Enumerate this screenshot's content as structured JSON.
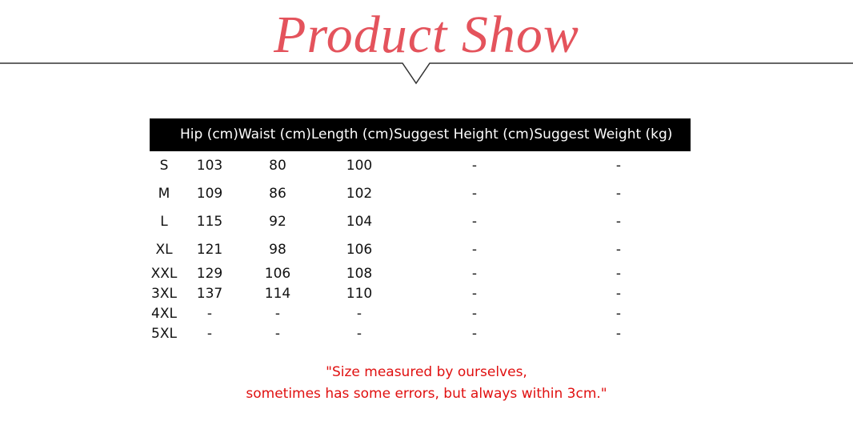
{
  "title": "Product Show",
  "accent_color": "#e4535c",
  "note_color": "#e01010",
  "table": {
    "headers": [
      "",
      "Hip (cm)",
      "Waist (cm)",
      "Length (cm)",
      "Suggest Height (cm)",
      "Suggest Weight (kg)"
    ],
    "rows": [
      [
        "S",
        "103",
        "80",
        "100",
        "-",
        "-"
      ],
      [
        "M",
        "109",
        "86",
        "102",
        "-",
        "-"
      ],
      [
        "L",
        "115",
        "92",
        "104",
        "-",
        "-"
      ],
      [
        "XL",
        "121",
        "98",
        "106",
        "-",
        "-"
      ],
      [
        "XXL",
        "129",
        "106",
        "108",
        "-",
        "-"
      ],
      [
        "3XL",
        "137",
        "114",
        "110",
        "-",
        "-"
      ],
      [
        "4XL",
        "-",
        "-",
        "-",
        "-",
        "-"
      ],
      [
        "5XL",
        "-",
        "-",
        "-",
        "-",
        "-"
      ]
    ]
  },
  "note": {
    "line1": "\"Size measured by ourselves,",
    "line2": "sometimes has some errors, but always within 3cm.\""
  }
}
